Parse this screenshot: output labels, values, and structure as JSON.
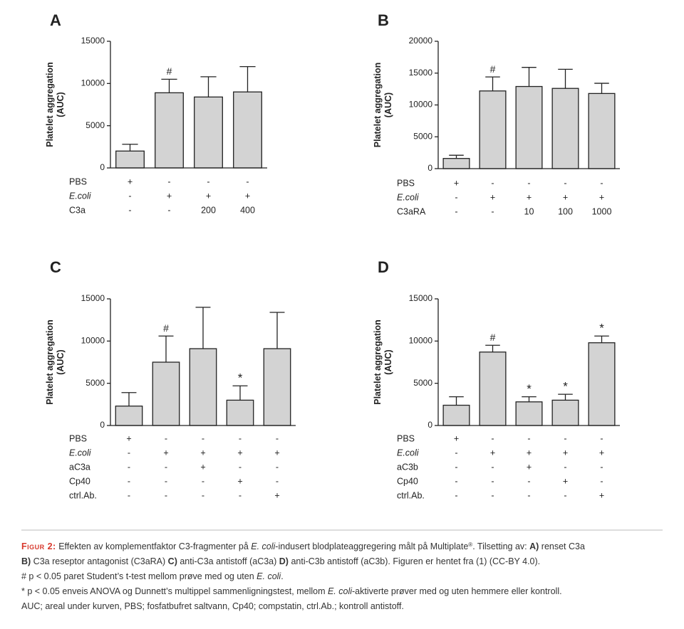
{
  "chart_data": [
    {
      "type": "bar",
      "panel": "A",
      "ylabel": [
        "Platelet aggregation",
        "(AUC)"
      ],
      "color": "#d3d3d3",
      "values": [
        2000,
        8900,
        8400,
        9000
      ],
      "errors": [
        800,
        1600,
        2400,
        3000
      ],
      "bar_labels": [
        null,
        "#",
        null,
        null
      ],
      "ylim": [
        0,
        15000
      ],
      "yticks": [
        0,
        5000,
        10000,
        15000
      ],
      "rows": [
        {
          "name": "PBS",
          "italic": false,
          "cells": [
            "+",
            "-",
            "-",
            "-"
          ]
        },
        {
          "name": "E.coli",
          "italic": true,
          "cells": [
            "-",
            "+",
            "+",
            "+"
          ]
        },
        {
          "name": "C3a",
          "italic": false,
          "cells": [
            "-",
            "-",
            "200",
            "400"
          ]
        }
      ]
    },
    {
      "type": "bar",
      "panel": "B",
      "ylabel": [
        "Platelet aggregation",
        "(AUC)"
      ],
      "color": "#d3d3d3",
      "values": [
        1600,
        12200,
        12900,
        12600,
        11800
      ],
      "errors": [
        500,
        2200,
        3000,
        3000,
        1600
      ],
      "bar_labels": [
        null,
        "#",
        null,
        null,
        null
      ],
      "ylim": [
        0,
        20000
      ],
      "yticks": [
        0,
        5000,
        10000,
        15000,
        20000
      ],
      "rows": [
        {
          "name": "PBS",
          "italic": false,
          "cells": [
            "+",
            "-",
            "-",
            "-",
            "-"
          ]
        },
        {
          "name": "E.coli",
          "italic": true,
          "cells": [
            "-",
            "+",
            "+",
            "+",
            "+"
          ]
        },
        {
          "name": "C3aRA",
          "italic": false,
          "cells": [
            "-",
            "-",
            "10",
            "100",
            "1000"
          ]
        }
      ]
    },
    {
      "type": "bar",
      "panel": "C",
      "ylabel": [
        "Platelet aggregation",
        "(AUC)"
      ],
      "color": "#d3d3d3",
      "values": [
        2300,
        7500,
        9100,
        3000,
        9100
      ],
      "errors": [
        1600,
        3100,
        4900,
        1700,
        4300
      ],
      "bar_labels": [
        null,
        "#",
        null,
        "*",
        null
      ],
      "ylim": [
        0,
        15000
      ],
      "yticks": [
        0,
        5000,
        10000,
        15000
      ],
      "rows": [
        {
          "name": "PBS",
          "italic": false,
          "cells": [
            "+",
            "-",
            "-",
            "-",
            "-"
          ]
        },
        {
          "name": "E.coli",
          "italic": true,
          "cells": [
            "-",
            "+",
            "+",
            "+",
            "+"
          ]
        },
        {
          "name": "aC3a",
          "italic": false,
          "cells": [
            "-",
            "-",
            "+",
            "-",
            "-"
          ]
        },
        {
          "name": "Cp40",
          "italic": false,
          "cells": [
            "-",
            "-",
            "-",
            "+",
            "-"
          ]
        },
        {
          "name": "ctrl.Ab.",
          "italic": false,
          "cells": [
            "-",
            "-",
            "-",
            "-",
            "+"
          ]
        }
      ]
    },
    {
      "type": "bar",
      "panel": "D",
      "ylabel": [
        "Platelet aggregation",
        "(AUC)"
      ],
      "color": "#d3d3d3",
      "values": [
        2400,
        8700,
        2800,
        3000,
        9800
      ],
      "errors": [
        1000,
        800,
        600,
        700,
        800
      ],
      "bar_labels": [
        null,
        "#",
        "*",
        "*",
        "*"
      ],
      "ylim": [
        0,
        15000
      ],
      "yticks": [
        0,
        5000,
        10000,
        15000
      ],
      "rows": [
        {
          "name": "PBS",
          "italic": false,
          "cells": [
            "+",
            "-",
            "-",
            "-",
            "-"
          ]
        },
        {
          "name": "E.coli",
          "italic": true,
          "cells": [
            "-",
            "+",
            "+",
            "+",
            "+"
          ]
        },
        {
          "name": "aC3b",
          "italic": false,
          "cells": [
            "-",
            "-",
            "+",
            "-",
            "-"
          ]
        },
        {
          "name": "Cp40",
          "italic": false,
          "cells": [
            "-",
            "-",
            "-",
            "+",
            "-"
          ]
        },
        {
          "name": "ctrl.Ab.",
          "italic": false,
          "cells": [
            "-",
            "-",
            "-",
            "-",
            "+"
          ]
        }
      ]
    }
  ],
  "caption": {
    "lines": [
      [
        {
          "text": "Figur 2:",
          "style": "label"
        },
        {
          "text": " Effekten av komplementfaktor C3-fragmenter på ",
          "style": "plain"
        },
        {
          "text": "E. coli",
          "style": "italic"
        },
        {
          "text": "-indusert blodplateaggregering målt på Multiplate",
          "style": "plain"
        },
        {
          "text": "®",
          "style": "sup"
        },
        {
          "text": ". Tilsetting av: ",
          "style": "plain"
        },
        {
          "text": "A)",
          "style": "bold"
        },
        {
          "text": " renset C3a",
          "style": "plain"
        }
      ],
      [
        {
          "text": "B)",
          "style": "bold"
        },
        {
          "text": " C3a reseptor antagonist (C3aRA) ",
          "style": "plain"
        },
        {
          "text": "C)",
          "style": "bold"
        },
        {
          "text": " anti-C3a antistoff (aC3a) ",
          "style": "plain"
        },
        {
          "text": "D)",
          "style": "bold"
        },
        {
          "text": " anti-C3b antistoff (aC3b). Figuren er hentet fra (1) (CC-BY 4.0).",
          "style": "plain"
        }
      ],
      [
        {
          "text": "# p < 0.05 paret Student’s t-test mellom prøve med og uten ",
          "style": "plain"
        },
        {
          "text": "E. coli",
          "style": "italic"
        },
        {
          "text": ".",
          "style": "plain"
        }
      ],
      [
        {
          "text": "* p < 0.05 enveis ANOVA og Dunnett’s multippel sammenligningstest, mellom ",
          "style": "plain"
        },
        {
          "text": "E. coli",
          "style": "italic"
        },
        {
          "text": "-aktiverte prøver med og uten hemmere eller kontroll.",
          "style": "plain"
        }
      ],
      [
        {
          "text": "AUC; areal under kurven, PBS; fosfatbufret saltvann, Cp40; compstatin, ctrl.Ab.; kontroll antistoff.",
          "style": "plain"
        }
      ]
    ]
  }
}
